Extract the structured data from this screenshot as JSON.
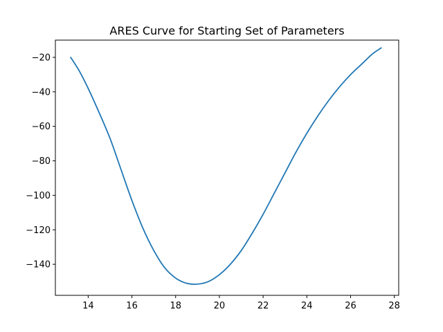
{
  "chart_data": {
    "type": "line",
    "title": "ARES Curve for Starting Set of Parameters",
    "xlabel": "",
    "ylabel": "",
    "xlim": [
      12.5,
      28.2
    ],
    "ylim": [
      -158,
      -10
    ],
    "xticks": [
      14,
      16,
      18,
      20,
      22,
      24,
      26,
      28
    ],
    "yticks": [
      -20,
      -40,
      -60,
      -80,
      -100,
      -120,
      -140
    ],
    "xtick_labels": [
      "14",
      "16",
      "18",
      "20",
      "22",
      "24",
      "26",
      "28"
    ],
    "ytick_labels": [
      "−20",
      "−40",
      "−60",
      "−80",
      "−100",
      "−120",
      "−140"
    ],
    "grid": false,
    "series": [
      {
        "color": "#1f77b4",
        "x": [
          13.2,
          13.6,
          14.0,
          14.5,
          15.0,
          15.5,
          16.0,
          16.5,
          17.0,
          17.5,
          18.0,
          18.5,
          19.0,
          19.5,
          20.0,
          20.5,
          21.0,
          21.5,
          22.0,
          22.5,
          23.0,
          23.5,
          24.0,
          24.5,
          25.0,
          25.5,
          26.0,
          26.5,
          27.0,
          27.4
        ],
        "y": [
          -20,
          -28,
          -38,
          -52,
          -67,
          -85,
          -103,
          -119,
          -132,
          -142,
          -148,
          -151,
          -151.5,
          -150,
          -146,
          -140,
          -132,
          -122,
          -111,
          -99,
          -87,
          -75,
          -64,
          -54,
          -45,
          -37,
          -30,
          -24,
          -18,
          -14.5
        ]
      }
    ]
  }
}
